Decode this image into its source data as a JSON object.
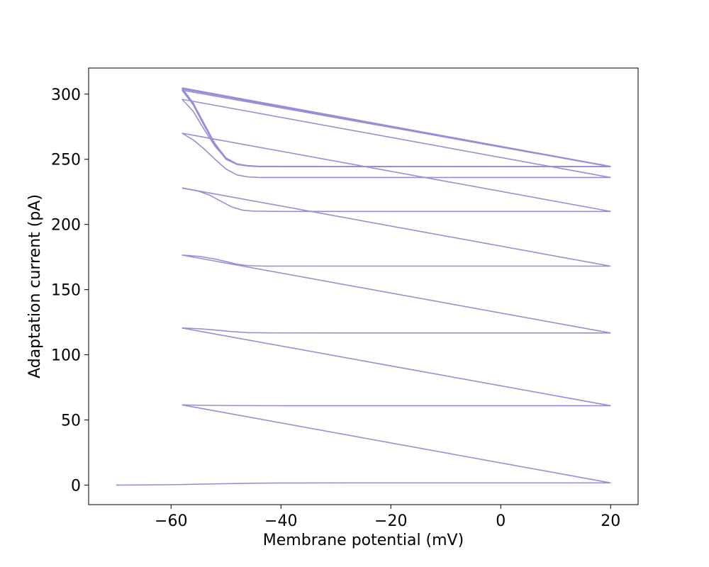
{
  "chart_data": {
    "type": "line",
    "title": "",
    "xlabel": "Membrane potential (mV)",
    "ylabel": "Adaptation current (pA)",
    "xlim": [
      -75,
      25
    ],
    "ylim": [
      -15,
      320
    ],
    "x_ticks": [
      -60,
      -40,
      -20,
      0,
      20
    ],
    "x_tick_labels": [
      "−60",
      "−40",
      "−20",
      "0",
      "20"
    ],
    "y_ticks": [
      0,
      50,
      100,
      150,
      200,
      250,
      300
    ],
    "y_tick_labels": [
      "0",
      "50",
      "100",
      "150",
      "200",
      "250",
      "300"
    ],
    "grid": false,
    "legend": "none",
    "colors": {
      "line": "#9490d8",
      "axes": "#000000",
      "background": "#ffffff"
    },
    "series": [
      {
        "points": [
          [
            -70,
            0
          ],
          [
            -65,
            0.1
          ],
          [
            -60,
            0.3
          ],
          [
            -56,
            0.6
          ],
          [
            -52,
            0.9
          ],
          [
            -48,
            1.2
          ],
          [
            -44,
            1.5
          ],
          [
            -40,
            1.6
          ],
          [
            -20,
            1.7
          ],
          [
            0,
            1.7
          ],
          [
            20,
            1.7
          ],
          [
            -58,
            61.5
          ],
          [
            -54,
            61.2
          ],
          [
            -48,
            61
          ],
          [
            -40,
            60.9
          ],
          [
            -20,
            60.9
          ],
          [
            0,
            60.9
          ],
          [
            20,
            60.9
          ],
          [
            -58,
            120.5
          ],
          [
            -55,
            120
          ],
          [
            -52,
            119
          ],
          [
            -49,
            117.8
          ],
          [
            -46,
            117
          ],
          [
            -42,
            116.8
          ],
          [
            -20,
            116.7
          ],
          [
            0,
            116.7
          ],
          [
            20,
            116.7
          ],
          [
            -58,
            176.5
          ],
          [
            -55,
            175.5
          ],
          [
            -52,
            173.5
          ],
          [
            -50,
            171.5
          ],
          [
            -48,
            169.5
          ],
          [
            -46,
            168.4
          ],
          [
            -43,
            168
          ],
          [
            -20,
            168
          ],
          [
            0,
            168
          ],
          [
            20,
            168
          ],
          [
            -58,
            228
          ],
          [
            -55,
            225.5
          ],
          [
            -53,
            222.5
          ],
          [
            -51,
            218
          ],
          [
            -49,
            213.5
          ],
          [
            -47,
            211
          ],
          [
            -45,
            210.2
          ],
          [
            -40,
            210
          ],
          [
            -20,
            210
          ],
          [
            0,
            210
          ],
          [
            20,
            210
          ],
          [
            -58,
            270
          ],
          [
            -56,
            265
          ],
          [
            -54,
            258
          ],
          [
            -52,
            250
          ],
          [
            -50,
            242.5
          ],
          [
            -48,
            238
          ],
          [
            -46,
            236.5
          ],
          [
            -44,
            236
          ],
          [
            -30,
            236
          ],
          [
            0,
            236
          ],
          [
            20,
            236
          ],
          [
            -58,
            296
          ],
          [
            -56,
            287
          ],
          [
            -54,
            273
          ],
          [
            -52,
            260
          ],
          [
            -50,
            250.5
          ],
          [
            -48,
            246.5
          ],
          [
            -46,
            245
          ],
          [
            -44,
            244.5
          ],
          [
            -30,
            244.3
          ],
          [
            0,
            244.3
          ],
          [
            20,
            244.3
          ],
          [
            -58,
            303
          ],
          [
            -56,
            292
          ],
          [
            -54,
            276
          ],
          [
            -52,
            261
          ],
          [
            -50,
            250
          ],
          [
            -48,
            246
          ],
          [
            -46,
            244.8
          ],
          [
            -44,
            244.3
          ],
          [
            -30,
            244.3
          ],
          [
            0,
            244.3
          ],
          [
            20,
            244.3
          ],
          [
            -58,
            304
          ],
          [
            -56,
            293
          ],
          [
            -54,
            277
          ],
          [
            -52,
            261.5
          ],
          [
            -50,
            250.5
          ],
          [
            -48,
            246.3
          ],
          [
            -46,
            245
          ],
          [
            -44,
            244.5
          ],
          [
            -30,
            244.4
          ],
          [
            0,
            244.4
          ],
          [
            20,
            244.4
          ],
          [
            -58,
            304.5
          ],
          [
            -56,
            293.5
          ],
          [
            -54,
            277.5
          ],
          [
            -52,
            262
          ],
          [
            -50,
            251
          ],
          [
            -48,
            246.5
          ],
          [
            -46,
            245.1
          ],
          [
            -44,
            244.6
          ],
          [
            -30,
            244.5
          ],
          [
            0,
            244.5
          ],
          [
            20,
            244.5
          ]
        ]
      }
    ],
    "reset_segments": [
      [
        [
          20,
          1.7
        ],
        [
          -58,
          61.5
        ]
      ],
      [
        [
          20,
          60.9
        ],
        [
          -58,
          120.5
        ]
      ],
      [
        [
          20,
          116.7
        ],
        [
          -58,
          176.5
        ]
      ],
      [
        [
          20,
          168
        ],
        [
          -58,
          228
        ]
      ],
      [
        [
          20,
          210
        ],
        [
          -58,
          270
        ]
      ],
      [
        [
          20,
          236
        ],
        [
          -58,
          296
        ]
      ],
      [
        [
          20,
          244.3
        ],
        [
          -58,
          303
        ]
      ],
      [
        [
          20,
          244.3
        ],
        [
          -58,
          304
        ]
      ],
      [
        [
          20,
          244.4
        ],
        [
          -58,
          304.5
        ]
      ],
      [
        [
          20,
          244.5
        ],
        [
          -58,
          304.8
        ]
      ]
    ]
  }
}
